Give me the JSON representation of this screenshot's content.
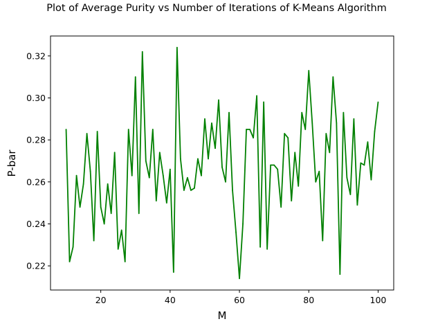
{
  "chart_data": {
    "type": "line",
    "title": "Plot of Average Purity vs Number of Iterations of K-Means Algorithm",
    "xlabel": "M",
    "ylabel": "P-bar",
    "xlim": [
      5.5,
      104.5
    ],
    "ylim": [
      0.2085,
      0.3295
    ],
    "grid": false,
    "x_ticks": [
      20,
      40,
      60,
      80,
      100
    ],
    "y_ticks": [
      0.22,
      0.24,
      0.26,
      0.28,
      0.3,
      0.32
    ],
    "y_tick_labels": [
      "0.22",
      "0.24",
      "0.26",
      "0.28",
      "0.30",
      "0.32"
    ],
    "series": [
      {
        "color": "#008000",
        "x": [
          10,
          11,
          12,
          13,
          14,
          15,
          16,
          17,
          18,
          19,
          20,
          21,
          22,
          23,
          24,
          25,
          26,
          27,
          28,
          29,
          30,
          31,
          32,
          33,
          34,
          35,
          36,
          37,
          38,
          39,
          40,
          41,
          42,
          43,
          44,
          45,
          46,
          47,
          48,
          49,
          50,
          51,
          52,
          53,
          54,
          55,
          56,
          57,
          58,
          59,
          60,
          61,
          62,
          63,
          64,
          65,
          66,
          67,
          68,
          69,
          70,
          71,
          72,
          73,
          74,
          75,
          76,
          77,
          78,
          79,
          80,
          81,
          82,
          83,
          84,
          85,
          86,
          87,
          88,
          89,
          90,
          91,
          92,
          93,
          94,
          95,
          96,
          97,
          98,
          99,
          100
        ],
        "values": [
          0.285,
          0.222,
          0.229,
          0.263,
          0.248,
          0.259,
          0.283,
          0.265,
          0.232,
          0.284,
          0.248,
          0.24,
          0.259,
          0.245,
          0.274,
          0.228,
          0.237,
          0.222,
          0.285,
          0.263,
          0.31,
          0.245,
          0.322,
          0.27,
          0.262,
          0.285,
          0.251,
          0.274,
          0.263,
          0.25,
          0.266,
          0.217,
          0.324,
          0.271,
          0.256,
          0.262,
          0.256,
          0.257,
          0.271,
          0.263,
          0.29,
          0.271,
          0.288,
          0.276,
          0.299,
          0.267,
          0.26,
          0.293,
          0.256,
          0.236,
          0.214,
          0.24,
          0.285,
          0.285,
          0.281,
          0.301,
          0.229,
          0.298,
          0.228,
          0.268,
          0.268,
          0.266,
          0.248,
          0.283,
          0.281,
          0.251,
          0.274,
          0.258,
          0.293,
          0.285,
          0.313,
          0.288,
          0.26,
          0.265,
          0.232,
          0.283,
          0.274,
          0.31,
          0.288,
          0.216,
          0.293,
          0.262,
          0.254,
          0.29,
          0.249,
          0.269,
          0.268,
          0.279,
          0.261,
          0.284,
          0.298
        ]
      }
    ]
  }
}
